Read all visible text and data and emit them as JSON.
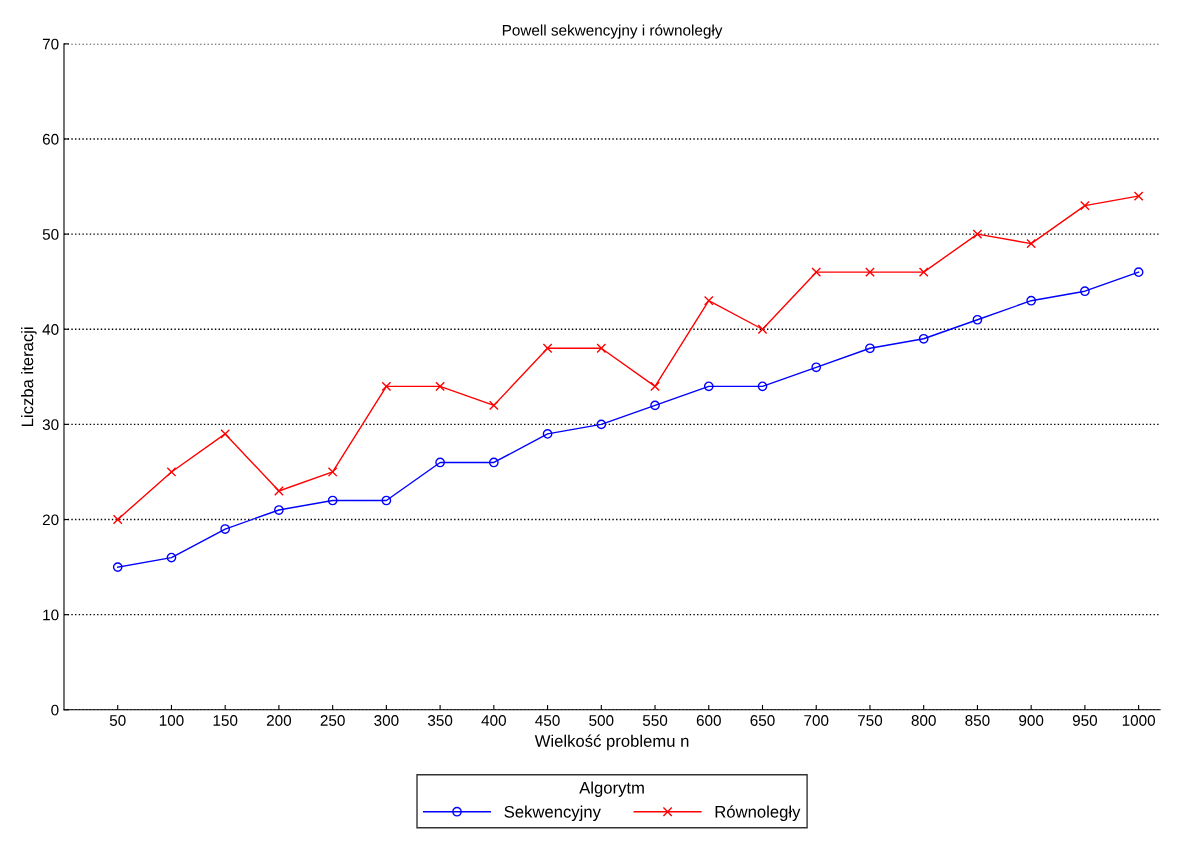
{
  "chart_data": {
    "type": "line",
    "title": "Powell sekwencyjny i równoległy",
    "xlabel": "Wielkość problemu n",
    "ylabel": "Liczba iteracji",
    "legend_title": "Algorytm",
    "x": [
      50,
      100,
      150,
      200,
      250,
      300,
      350,
      400,
      450,
      500,
      550,
      600,
      650,
      700,
      750,
      800,
      850,
      900,
      950,
      1000
    ],
    "series": [
      {
        "name": "Sekwencyjny",
        "color": "#0000ff",
        "marker": "circle",
        "values": [
          15,
          16,
          19,
          21,
          22,
          22,
          26,
          26,
          29,
          30,
          32,
          34,
          34,
          36,
          38,
          39,
          41,
          43,
          44,
          46
        ]
      },
      {
        "name": "Równoległy",
        "color": "#ff0000",
        "marker": "cross",
        "values": [
          20,
          25,
          29,
          23,
          25,
          34,
          34,
          32,
          38,
          38,
          34,
          43,
          40,
          46,
          46,
          46,
          50,
          49,
          53,
          54
        ]
      }
    ],
    "xlim": [
      0,
      1020
    ],
    "xticks": [
      50,
      100,
      150,
      200,
      250,
      300,
      350,
      400,
      450,
      500,
      550,
      600,
      650,
      700,
      750,
      800,
      850,
      900,
      950,
      1000
    ],
    "ylim": [
      0,
      70
    ],
    "yticks": [
      0,
      10,
      20,
      30,
      40,
      50,
      60,
      70
    ],
    "grid": "y",
    "legend": "bottom",
    "line_style": "solid"
  }
}
